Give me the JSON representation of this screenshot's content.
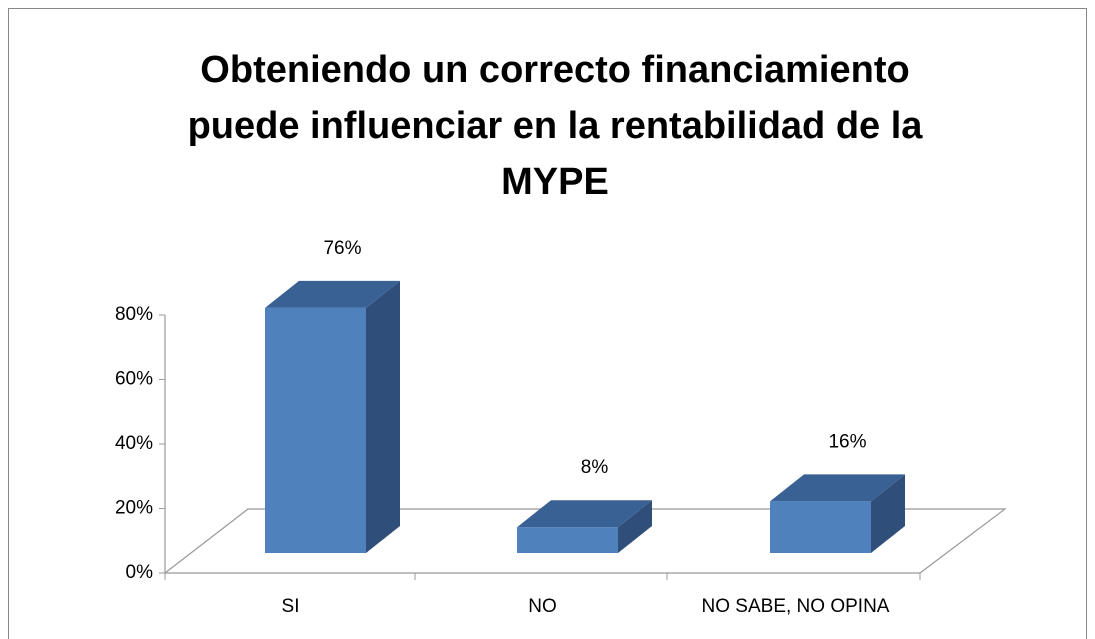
{
  "chart_data": {
    "type": "bar3d",
    "title": [
      "Obteniendo un correcto financiamiento",
      "puede influenciar en la rentabilidad de la",
      "MYPE"
    ],
    "categories": [
      "SI",
      "NO",
      "NO SABE, NO OPINA"
    ],
    "values": [
      76,
      8,
      16
    ],
    "value_labels": [
      "76%",
      "8%",
      "16%"
    ],
    "color": "#4f81bd",
    "ylim": [
      0,
      80
    ],
    "yticks": [
      {
        "value": 0,
        "label": "0%"
      },
      {
        "value": 20,
        "label": "20%"
      },
      {
        "value": 40,
        "label": "40%"
      },
      {
        "value": 60,
        "label": "60%"
      },
      {
        "value": 80,
        "label": "80%"
      }
    ]
  }
}
